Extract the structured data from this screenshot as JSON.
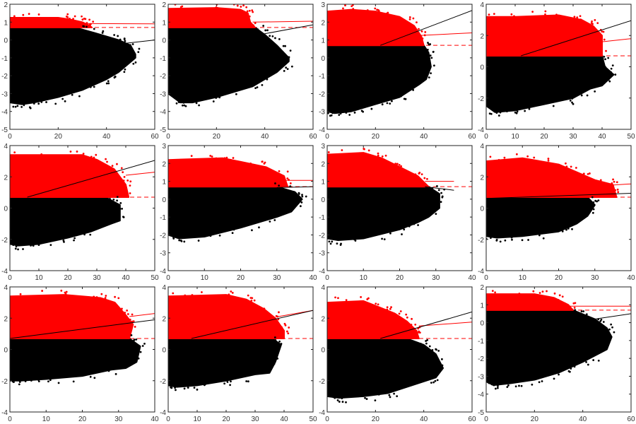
{
  "chart_data": [
    {
      "type": "scatter",
      "xlim": [
        0,
        60
      ],
      "ylim": [
        -5,
        2
      ],
      "xticks": [
        0,
        20,
        40,
        60
      ],
      "yticks": [
        -5,
        -4,
        -3,
        -2,
        -1,
        0,
        1,
        2
      ],
      "threshold": 0.7,
      "red_upper": [
        [
          0,
          1.25
        ],
        [
          20,
          1.25
        ],
        [
          25,
          1.15
        ],
        [
          30,
          1.0
        ],
        [
          33,
          0.8
        ],
        [
          34,
          0.7
        ]
      ],
      "black_upper": [
        [
          27,
          0.7
        ],
        [
          35,
          0.4
        ],
        [
          45,
          0
        ],
        [
          50,
          -0.3
        ],
        [
          52,
          -0.8
        ]
      ],
      "black_lower": [
        [
          52,
          -1
        ],
        [
          45,
          -1.8
        ],
        [
          40,
          -2.2
        ],
        [
          30,
          -2.8
        ],
        [
          20,
          -3.2
        ],
        [
          10,
          -3.5
        ],
        [
          5,
          -3.6
        ],
        [
          0,
          -3.5
        ]
      ],
      "red_fit": [
        [
          30,
          0.92
        ],
        [
          60,
          0.9
        ]
      ],
      "black_fit": [
        [
          40,
          -0.3
        ],
        [
          60,
          0.0
        ]
      ]
    },
    {
      "type": "scatter",
      "xlim": [
        0,
        60
      ],
      "ylim": [
        -5,
        2
      ],
      "xticks": [
        0,
        20,
        40,
        60
      ],
      "yticks": [
        -5,
        -4,
        -3,
        -2,
        -1,
        0,
        1,
        2
      ],
      "threshold": 0.7,
      "red_upper": [
        [
          0,
          1.75
        ],
        [
          20,
          1.8
        ],
        [
          30,
          1.7
        ],
        [
          33,
          1.5
        ],
        [
          34,
          1.0
        ],
        [
          36,
          0.7
        ]
      ],
      "black_upper": [
        [
          36,
          0.7
        ],
        [
          40,
          0.3
        ],
        [
          45,
          -0.3
        ],
        [
          50,
          -1.0
        ]
      ],
      "black_lower": [
        [
          50,
          -1.2
        ],
        [
          45,
          -1.8
        ],
        [
          35,
          -2.6
        ],
        [
          20,
          -3.2
        ],
        [
          10,
          -3.5
        ],
        [
          5,
          -3.5
        ],
        [
          0,
          -3
        ]
      ],
      "red_fit": [
        [
          35,
          1.0
        ],
        [
          60,
          1.05
        ]
      ],
      "black_fit": [
        [
          38,
          0.3
        ],
        [
          60,
          0.85
        ]
      ]
    },
    {
      "type": "scatter",
      "xlim": [
        0,
        60
      ],
      "ylim": [
        -4,
        3
      ],
      "xticks": [
        0,
        20,
        40,
        60
      ],
      "yticks": [
        -4,
        -3,
        -2,
        -1,
        0,
        1,
        2,
        3
      ],
      "threshold": 0.7,
      "red_upper": [
        [
          0,
          2.6
        ],
        [
          10,
          2.7
        ],
        [
          20,
          2.6
        ],
        [
          30,
          2.3
        ],
        [
          36,
          1.8
        ],
        [
          39,
          1.2
        ],
        [
          40,
          0.7
        ]
      ],
      "black_upper": [
        [
          40,
          0.7
        ],
        [
          42,
          0.3
        ],
        [
          43,
          -0.5
        ],
        [
          41,
          -1.2
        ]
      ],
      "black_lower": [
        [
          38,
          -1.5
        ],
        [
          30,
          -2.2
        ],
        [
          20,
          -2.6
        ],
        [
          10,
          -3.0
        ],
        [
          3,
          -3.1
        ],
        [
          0,
          -3
        ]
      ],
      "red_fit": [
        [
          38,
          1.25
        ],
        [
          60,
          1.4
        ]
      ],
      "black_fit": [
        [
          22,
          0.7
        ],
        [
          60,
          2.65
        ]
      ]
    },
    {
      "type": "scatter",
      "xlim": [
        0,
        50
      ],
      "ylim": [
        -4,
        4
      ],
      "xticks": [
        0,
        10,
        20,
        30,
        40,
        50
      ],
      "yticks": [
        -4,
        -2,
        0,
        2,
        4
      ],
      "threshold": 0.7,
      "red_upper": [
        [
          0,
          3.2
        ],
        [
          10,
          3.2
        ],
        [
          25,
          3.3
        ],
        [
          33,
          3.0
        ],
        [
          37,
          2.6
        ],
        [
          40,
          2.0
        ],
        [
          40,
          0.7
        ]
      ],
      "black_upper": [
        [
          40,
          0.7
        ],
        [
          41,
          0
        ],
        [
          44,
          -0.5
        ],
        [
          40,
          -1.2
        ]
      ],
      "black_lower": [
        [
          36,
          -1.4
        ],
        [
          30,
          -2
        ],
        [
          20,
          -2.4
        ],
        [
          10,
          -2.8
        ],
        [
          3,
          -2.9
        ],
        [
          0,
          -2.5
        ]
      ],
      "red_fit": [
        [
          40,
          1.6
        ],
        [
          50,
          1.8
        ]
      ],
      "black_fit": [
        [
          12,
          0.7
        ],
        [
          50,
          2.95
        ]
      ]
    },
    {
      "type": "scatter",
      "xlim": [
        0,
        50
      ],
      "ylim": [
        -4,
        4
      ],
      "xticks": [
        0,
        10,
        20,
        30,
        40,
        50
      ],
      "yticks": [
        -4,
        -2,
        0,
        2,
        4
      ],
      "threshold": 0.7,
      "red_upper": [
        [
          0,
          3.4
        ],
        [
          25,
          3.4
        ],
        [
          30,
          3.1
        ],
        [
          36,
          2.5
        ],
        [
          40,
          1.5
        ],
        [
          41,
          0.7
        ]
      ],
      "black_upper": [
        [
          33,
          0.7
        ],
        [
          38,
          0.2
        ],
        [
          38,
          -0.8
        ],
        [
          35,
          -1
        ]
      ],
      "black_lower": [
        [
          28,
          -1.5
        ],
        [
          20,
          -1.9
        ],
        [
          10,
          -2.3
        ],
        [
          3,
          -2.4
        ],
        [
          0,
          -2.3
        ]
      ],
      "red_fit": [
        [
          40,
          2.1
        ],
        [
          50,
          2.3
        ]
      ],
      "black_fit": [
        [
          6,
          0.7
        ],
        [
          50,
          3.05
        ]
      ]
    },
    {
      "type": "scatter",
      "xlim": [
        0,
        40
      ],
      "ylim": [
        -4,
        3
      ],
      "xticks": [
        0,
        10,
        20,
        30,
        40
      ],
      "yticks": [
        -4,
        -3,
        -2,
        -1,
        0,
        1,
        2,
        3
      ],
      "threshold": 0.7,
      "red_upper": [
        [
          0,
          2.2
        ],
        [
          15,
          2.3
        ],
        [
          20,
          2.1
        ],
        [
          27,
          1.8
        ],
        [
          32,
          1.3
        ],
        [
          33,
          0.7
        ]
      ],
      "black_upper": [
        [
          30,
          0.7
        ],
        [
          35,
          0.4
        ],
        [
          37,
          0
        ],
        [
          34,
          -0.7
        ]
      ],
      "black_lower": [
        [
          30,
          -1
        ],
        [
          20,
          -1.6
        ],
        [
          10,
          -2.1
        ],
        [
          3,
          -2.2
        ],
        [
          0,
          -2
        ]
      ],
      "red_fit": [
        [
          30,
          1.05
        ],
        [
          40,
          1.05
        ]
      ],
      "black_fit": [
        [
          30,
          0.65
        ],
        [
          40,
          0.7
        ]
      ]
    },
    {
      "type": "scatter",
      "xlim": [
        0,
        40
      ],
      "ylim": [
        -4,
        3
      ],
      "xticks": [
        0,
        10,
        20,
        30,
        40
      ],
      "yticks": [
        -4,
        -3,
        -2,
        -1,
        0,
        1,
        2,
        3
      ],
      "threshold": 0.7,
      "red_upper": [
        [
          0,
          2.5
        ],
        [
          10,
          2.6
        ],
        [
          15,
          2.3
        ],
        [
          20,
          1.8
        ],
        [
          25,
          1.3
        ],
        [
          28,
          0.7
        ]
      ],
      "black_upper": [
        [
          28,
          0.7
        ],
        [
          31,
          0.3
        ],
        [
          31,
          -0.5
        ],
        [
          28,
          -1
        ]
      ],
      "black_lower": [
        [
          25,
          -1.3
        ],
        [
          20,
          -1.7
        ],
        [
          10,
          -2.2
        ],
        [
          3,
          -2.3
        ],
        [
          0,
          -2.2
        ]
      ],
      "red_fit": [
        [
          27,
          1.0
        ],
        [
          35,
          1.0
        ]
      ],
      "black_fit": [
        [
          27,
          0.7
        ],
        [
          35,
          0.5
        ]
      ]
    },
    {
      "type": "scatter",
      "xlim": [
        0,
        40
      ],
      "ylim": [
        -4,
        4
      ],
      "xticks": [
        0,
        10,
        20,
        30,
        40
      ],
      "yticks": [
        -4,
        -2,
        0,
        2,
        4
      ],
      "threshold": 0.7,
      "red_upper": [
        [
          0,
          3.0
        ],
        [
          10,
          3.2
        ],
        [
          20,
          2.8
        ],
        [
          25,
          2.3
        ],
        [
          30,
          1.8
        ],
        [
          35,
          1.5
        ],
        [
          36,
          0.7
        ]
      ],
      "black_upper": [
        [
          28,
          0.7
        ],
        [
          30,
          0.2
        ],
        [
          28,
          -0.5
        ]
      ],
      "black_lower": [
        [
          25,
          -1
        ],
        [
          20,
          -1.5
        ],
        [
          10,
          -1.8
        ],
        [
          3,
          -1.9
        ],
        [
          0,
          -1.8
        ]
      ],
      "red_fit": [
        [
          30,
          1.4
        ],
        [
          40,
          1.55
        ]
      ],
      "black_fit": [
        [
          0,
          0.62
        ],
        [
          40,
          0.95
        ]
      ]
    },
    {
      "type": "scatter",
      "xlim": [
        0,
        40
      ],
      "ylim": [
        -4,
        4
      ],
      "xticks": [
        0,
        10,
        20,
        30,
        40
      ],
      "yticks": [
        -4,
        -2,
        0,
        2,
        4
      ],
      "threshold": 0.7,
      "red_upper": [
        [
          0,
          3.4
        ],
        [
          15,
          3.5
        ],
        [
          25,
          3.3
        ],
        [
          29,
          3.0
        ],
        [
          32,
          2.2
        ],
        [
          34,
          1.6
        ],
        [
          33,
          0.7
        ]
      ],
      "black_upper": [
        [
          33,
          0.7
        ],
        [
          36,
          0.2
        ],
        [
          35,
          -0.8
        ],
        [
          32,
          -1.2
        ]
      ],
      "black_lower": [
        [
          28,
          -1.3
        ],
        [
          20,
          -1.7
        ],
        [
          10,
          -1.9
        ],
        [
          3,
          -2
        ],
        [
          0,
          -2
        ]
      ],
      "red_fit": [
        [
          33,
          2.1
        ],
        [
          40,
          2.3
        ]
      ],
      "black_fit": [
        [
          0,
          0.7
        ],
        [
          40,
          1.9
        ]
      ]
    },
    {
      "type": "scatter",
      "xlim": [
        0,
        50
      ],
      "ylim": [
        -4,
        4
      ],
      "xticks": [
        0,
        10,
        20,
        30,
        40,
        50
      ],
      "yticks": [
        -4,
        -2,
        0,
        2,
        4
      ],
      "threshold": 0.7,
      "red_upper": [
        [
          0,
          3.4
        ],
        [
          20,
          3.5
        ],
        [
          27,
          3.2
        ],
        [
          33,
          2.6
        ],
        [
          37,
          2.0
        ],
        [
          40,
          1.2
        ],
        [
          40,
          0.7
        ]
      ],
      "black_upper": [
        [
          36,
          0.7
        ],
        [
          39,
          0.3
        ],
        [
          37,
          -0.8
        ],
        [
          35,
          -1.5
        ]
      ],
      "black_lower": [
        [
          30,
          -1.6
        ],
        [
          20,
          -2
        ],
        [
          10,
          -2.3
        ],
        [
          3,
          -2.4
        ],
        [
          0,
          -2.3
        ]
      ],
      "red_fit": [
        [
          38,
          2.1
        ],
        [
          50,
          2.5
        ]
      ],
      "black_fit": [
        [
          8,
          0.7
        ],
        [
          50,
          2.5
        ]
      ]
    },
    {
      "type": "scatter",
      "xlim": [
        0,
        60
      ],
      "ylim": [
        -4,
        4
      ],
      "xticks": [
        0,
        20,
        40,
        60
      ],
      "yticks": [
        -4,
        -2,
        0,
        2,
        4
      ],
      "threshold": 0.7,
      "red_upper": [
        [
          0,
          3.0
        ],
        [
          15,
          3.1
        ],
        [
          20,
          2.8
        ],
        [
          28,
          2.3
        ],
        [
          33,
          1.8
        ],
        [
          37,
          1.2
        ],
        [
          38,
          0.7
        ]
      ],
      "black_upper": [
        [
          33,
          0.7
        ],
        [
          40,
          0.3
        ],
        [
          45,
          -0.3
        ],
        [
          48,
          -1.2
        ]
      ],
      "black_lower": [
        [
          45,
          -1.8
        ],
        [
          35,
          -2.3
        ],
        [
          25,
          -2.8
        ],
        [
          15,
          -3.0
        ],
        [
          5,
          -3.1
        ],
        [
          0,
          -3
        ]
      ],
      "red_fit": [
        [
          38,
          1.5
        ],
        [
          60,
          1.75
        ]
      ],
      "black_fit": [
        [
          22,
          0.7
        ],
        [
          60,
          2.4
        ]
      ]
    },
    {
      "type": "scatter",
      "xlim": [
        0,
        60
      ],
      "ylim": [
        -5,
        2
      ],
      "xticks": [
        0,
        20,
        40,
        60
      ],
      "yticks": [
        -5,
        -4,
        -3,
        -2,
        -1,
        0,
        1,
        2
      ],
      "threshold": 0.7,
      "red_upper": [
        [
          0,
          1.6
        ],
        [
          20,
          1.6
        ],
        [
          28,
          1.4
        ],
        [
          34,
          1.0
        ],
        [
          36,
          0.7
        ]
      ],
      "black_upper": [
        [
          36,
          0.7
        ],
        [
          45,
          0.2
        ],
        [
          50,
          -0.3
        ],
        [
          52,
          -0.8
        ]
      ],
      "black_lower": [
        [
          50,
          -1.5
        ],
        [
          40,
          -2.2
        ],
        [
          30,
          -2.8
        ],
        [
          20,
          -3.2
        ],
        [
          10,
          -3.4
        ],
        [
          3,
          -3.5
        ],
        [
          0,
          -3.3
        ]
      ],
      "red_fit": [
        [
          30,
          0.92
        ],
        [
          60,
          0.92
        ]
      ],
      "black_fit": [
        [
          40,
          0.1
        ],
        [
          60,
          0.5
        ]
      ]
    }
  ],
  "colors": {
    "above_threshold": "#ff0000",
    "below_threshold": "#000000",
    "threshold_line": "#ff0000"
  }
}
